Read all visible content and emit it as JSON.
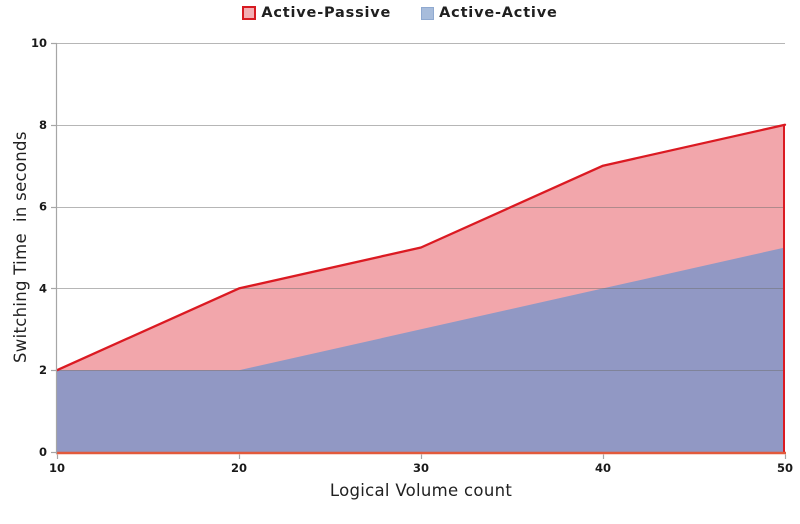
{
  "legend": {
    "items": [
      {
        "label": "Active-Passive",
        "fill": "#F3AEB3",
        "border": "#D71A21"
      },
      {
        "label": "Active-Active",
        "fill": "#A7BCDB",
        "border": "#8FA9D0"
      }
    ]
  },
  "chart_data": {
    "type": "area",
    "x": [
      10,
      20,
      30,
      40,
      50
    ],
    "series": [
      {
        "name": "Active-Passive",
        "values": [
          2,
          4,
          5,
          7,
          8
        ],
        "fill": "#F2A6AB",
        "line": "#DB1A22"
      },
      {
        "name": "Active-Active",
        "values": [
          2,
          2,
          3,
          4,
          5
        ],
        "fill": "#9198C4",
        "line": null
      }
    ],
    "title": "",
    "xlabel": "Logical Volume count",
    "ylabel": "Switching Time  in seconds",
    "xlim": [
      10,
      50
    ],
    "ylim": [
      0,
      10
    ],
    "x_ticks": [
      10,
      20,
      30,
      40,
      50
    ],
    "y_ticks": [
      0,
      2,
      4,
      6,
      8,
      10
    ],
    "grid": true,
    "legend_position": "top-center",
    "colors": {
      "gridline": "#B3B3B3",
      "axis": "#A6A6A6",
      "x_axis_line": "#E25A3C",
      "text": "#1A1A1A"
    }
  }
}
